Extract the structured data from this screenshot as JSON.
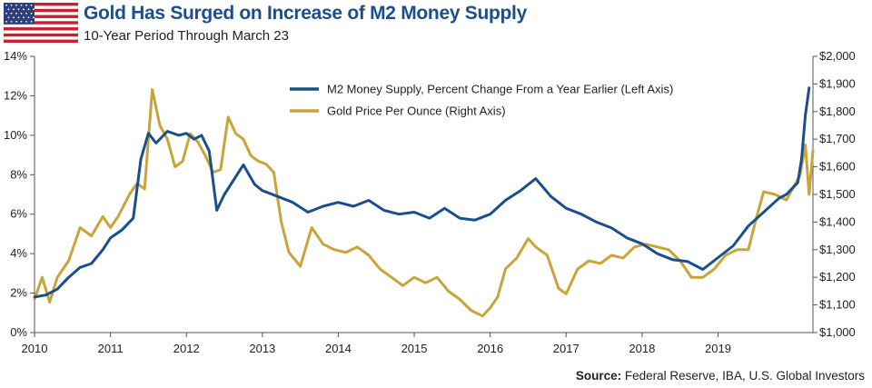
{
  "header": {
    "title": "Gold Has Surged on Increase of M2 Money Supply",
    "subtitle": "10-Year Period Through March 23",
    "flag_icon": "us-flag-icon"
  },
  "footer": {
    "source_label": "Source:",
    "source_text": "Federal Reserve, IBA, U.S. Global Investors"
  },
  "colors": {
    "m2": "#1b4f8c",
    "gold": "#c9a43a",
    "axis": "#555555",
    "title": "#1b4f8c"
  },
  "chart_data": {
    "type": "line",
    "title": "Gold Has Surged on Increase of M2 Money Supply",
    "subtitle": "10-Year Period Through March 23",
    "x_range": [
      2010,
      2020.25
    ],
    "x_ticks": [
      2010,
      2011,
      2012,
      2013,
      2014,
      2015,
      2016,
      2017,
      2018,
      2019
    ],
    "x_tick_labels": [
      "2010",
      "2011",
      "2012",
      "2013",
      "2014",
      "2015",
      "2016",
      "2017",
      "2018",
      "2019"
    ],
    "y_left": {
      "range": [
        0,
        14
      ],
      "ticks": [
        0,
        2,
        4,
        6,
        8,
        10,
        12,
        14
      ],
      "tick_labels": [
        "0%",
        "2%",
        "4%",
        "6%",
        "8%",
        "10%",
        "12%",
        "14%"
      ]
    },
    "y_right": {
      "range": [
        1000,
        2000
      ],
      "ticks": [
        1000,
        1100,
        1200,
        1300,
        1400,
        1500,
        1600,
        1700,
        1800,
        1900,
        2000
      ],
      "tick_labels": [
        "$1,000",
        "$1,100",
        "$1,200",
        "$1,300",
        "$1,400",
        "$1,500",
        "$1,600",
        "$1,700",
        "$1,800",
        "$1,900",
        "$2,000"
      ]
    },
    "legend_position": "top-right",
    "series": [
      {
        "name": "M2 Money Supply, Percent Change From a Year Earlier (Left Axis)",
        "axis": "left",
        "color": "#1b4f8c",
        "x": [
          2010.0,
          2010.15,
          2010.3,
          2010.45,
          2010.6,
          2010.75,
          2010.9,
          2011.0,
          2011.15,
          2011.3,
          2011.4,
          2011.5,
          2011.6,
          2011.75,
          2011.9,
          2012.0,
          2012.1,
          2012.2,
          2012.3,
          2012.4,
          2012.5,
          2012.6,
          2012.75,
          2012.9,
          2013.0,
          2013.2,
          2013.4,
          2013.6,
          2013.8,
          2014.0,
          2014.2,
          2014.4,
          2014.6,
          2014.8,
          2015.0,
          2015.2,
          2015.4,
          2015.6,
          2015.8,
          2016.0,
          2016.2,
          2016.4,
          2016.5,
          2016.6,
          2016.8,
          2017.0,
          2017.2,
          2017.4,
          2017.6,
          2017.8,
          2018.0,
          2018.2,
          2018.4,
          2018.6,
          2018.8,
          2019.0,
          2019.2,
          2019.4,
          2019.6,
          2019.8,
          2019.9,
          2020.0,
          2020.05,
          2020.1,
          2020.15,
          2020.2
        ],
        "values": [
          1.8,
          1.9,
          2.2,
          2.8,
          3.3,
          3.5,
          4.2,
          4.8,
          5.2,
          5.8,
          8.8,
          10.1,
          9.6,
          10.2,
          10.0,
          10.1,
          9.8,
          10.0,
          9.2,
          6.2,
          7.0,
          7.6,
          8.5,
          7.5,
          7.2,
          6.9,
          6.6,
          6.1,
          6.4,
          6.6,
          6.4,
          6.7,
          6.2,
          6.0,
          6.1,
          5.8,
          6.3,
          5.8,
          5.7,
          6.0,
          6.7,
          7.2,
          7.5,
          7.8,
          6.9,
          6.3,
          6.0,
          5.6,
          5.3,
          4.8,
          4.5,
          4.0,
          3.7,
          3.6,
          3.2,
          3.8,
          4.4,
          5.4,
          6.1,
          6.8,
          7.0,
          7.4,
          7.6,
          8.8,
          11.0,
          12.4
        ]
      },
      {
        "name": "Gold Price Per Ounce (Right Axis)",
        "axis": "right",
        "color": "#c9a43a",
        "x": [
          2010.0,
          2010.1,
          2010.2,
          2010.3,
          2010.45,
          2010.6,
          2010.75,
          2010.9,
          2011.0,
          2011.1,
          2011.25,
          2011.35,
          2011.45,
          2011.55,
          2011.65,
          2011.75,
          2011.85,
          2011.95,
          2012.05,
          2012.15,
          2012.25,
          2012.35,
          2012.45,
          2012.55,
          2012.65,
          2012.75,
          2012.85,
          2012.95,
          2013.05,
          2013.15,
          2013.25,
          2013.35,
          2013.5,
          2013.65,
          2013.8,
          2013.95,
          2014.1,
          2014.25,
          2014.4,
          2014.55,
          2014.7,
          2014.85,
          2015.0,
          2015.15,
          2015.3,
          2015.45,
          2015.6,
          2015.75,
          2015.9,
          2016.0,
          2016.1,
          2016.2,
          2016.35,
          2016.5,
          2016.6,
          2016.75,
          2016.9,
          2017.0,
          2017.15,
          2017.3,
          2017.45,
          2017.6,
          2017.75,
          2017.9,
          2018.05,
          2018.2,
          2018.35,
          2018.5,
          2018.65,
          2018.8,
          2018.95,
          2019.1,
          2019.25,
          2019.4,
          2019.5,
          2019.6,
          2019.75,
          2019.9,
          2020.0,
          2020.08,
          2020.15,
          2020.2,
          2020.25
        ],
        "values": [
          1120,
          1200,
          1110,
          1200,
          1260,
          1380,
          1350,
          1420,
          1380,
          1420,
          1500,
          1540,
          1520,
          1880,
          1750,
          1700,
          1600,
          1620,
          1720,
          1690,
          1640,
          1580,
          1590,
          1780,
          1720,
          1700,
          1640,
          1620,
          1610,
          1580,
          1400,
          1290,
          1240,
          1380,
          1320,
          1300,
          1290,
          1310,
          1280,
          1230,
          1200,
          1170,
          1200,
          1180,
          1200,
          1150,
          1120,
          1080,
          1060,
          1090,
          1130,
          1230,
          1270,
          1340,
          1310,
          1280,
          1160,
          1140,
          1230,
          1260,
          1250,
          1280,
          1270,
          1310,
          1320,
          1310,
          1300,
          1260,
          1200,
          1200,
          1230,
          1280,
          1300,
          1300,
          1410,
          1510,
          1500,
          1480,
          1530,
          1570,
          1680,
          1500,
          1660
        ]
      }
    ]
  }
}
